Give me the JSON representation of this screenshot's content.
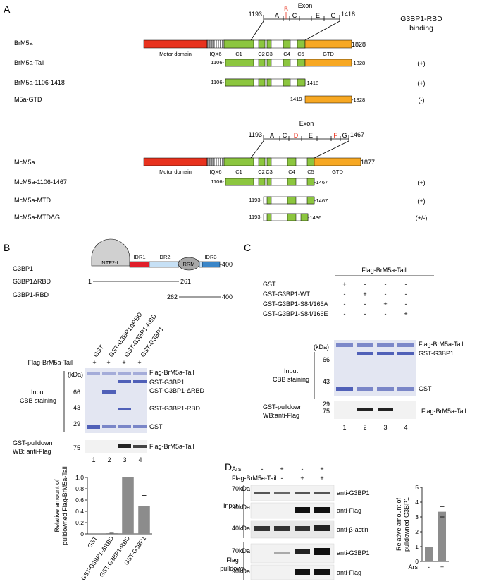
{
  "panelA": {
    "letter": "A",
    "header": "G3BP1-RBD",
    "header2": "binding",
    "br": {
      "exon_label": "Exon",
      "exon_letters": [
        "A",
        "B",
        "C",
        "E",
        "G"
      ],
      "exon_start": "1193",
      "exon_end": "1418",
      "full_name": "BrM5a",
      "domain_motor": "Motor domain",
      "domain_iq": "IQX6",
      "domain_gtd": "GTD",
      "coil_labels": [
        "C1",
        "C2",
        "C3",
        "C4",
        "C5"
      ],
      "full_end": "1828",
      "constructs": [
        {
          "name": "BrM5a-Tail",
          "start": "1106-",
          "end": "-1828",
          "binding": "(+)"
        },
        {
          "name": "BrM5a-1106-1418",
          "start": "1106-",
          "end": "-1418",
          "binding": "(+)"
        },
        {
          "name": "M5a-GTD",
          "start": "1419-",
          "end": "-1828",
          "binding": "(-)"
        }
      ]
    },
    "mc": {
      "exon_label": "Exon",
      "exon_letters": [
        "A",
        "C",
        "D",
        "E",
        "F",
        "G"
      ],
      "exon_start": "1193",
      "exon_end": "1467",
      "full_name": "McM5a",
      "domain_motor": "Motor domain",
      "domain_iq": "IQX6",
      "domain_gtd": "GTD",
      "coil_labels": [
        "C1",
        "C2",
        "C3",
        "C4",
        "C5"
      ],
      "full_end": "1877",
      "constructs": [
        {
          "name": "McM5a-1106-1467",
          "start": "1106-",
          "end": "-1467",
          "binding": "(+)"
        },
        {
          "name": "McM5a-MTD",
          "start": "1193-",
          "end": "-1467",
          "binding": "(+)"
        },
        {
          "name": "McM5a-MTDΔG",
          "start": "1193-",
          "end": "-1436",
          "binding": "(+/-)"
        }
      ]
    }
  },
  "panelB": {
    "letter": "B",
    "protein": "G3BP1",
    "domains": [
      "NTF2-L",
      "IDR1",
      "IDR2",
      "RRM",
      "IDR3"
    ],
    "end": "-400",
    "constructs": [
      {
        "name": "G3BP1ΔRBD",
        "start": "1",
        "end": "261"
      },
      {
        "name": "G3BP1-RBD",
        "start": "262",
        "end": "400"
      }
    ],
    "lane_labels": [
      "GST",
      "GST-G3BP1ΔRBD",
      "GST-G3BP1-RBD",
      "GST-G3BP1"
    ],
    "flag_row": "Flag-BrM5a-Tail",
    "plus_signs": [
      "+",
      "+",
      "+",
      "+"
    ],
    "kda": "(kDa)",
    "markers": [
      "66",
      "43",
      "29"
    ],
    "input_label": "Input",
    "cbb_label": "CBB staining",
    "right_labels": [
      "Flag-BrM5a-Tail",
      "GST-G3BP1",
      "GST-G3BP1-ΔRBD",
      "GST-G3BP1-RBD",
      "GST"
    ],
    "pulldown_label": "GST-pulldown",
    "wb_label": "WB: anti-Flag",
    "wb_marker": "75",
    "wb_right": "Flag-BrM5a-Tail",
    "lane_numbers": [
      "1",
      "2",
      "3",
      "4"
    ]
  },
  "chartB": {
    "ylabel_1": "Relative amount of",
    "ylabel_2": "pulldowned Flag-BrM5a-Tail",
    "categories": [
      "GST",
      "GST-G3BP1-ΔRBD",
      "GST-G3BP1-RBD",
      "GST-G3BP1"
    ],
    "values": [
      0.0,
      0.02,
      1.0,
      0.5
    ],
    "errors": [
      0,
      0.005,
      0,
      0.18
    ],
    "ylim": [
      0,
      1.0
    ],
    "yticks": [
      "0",
      "0.2",
      "0.4",
      "0.6",
      "0.8",
      "1.0"
    ],
    "color": "#8c8c8c"
  },
  "panelC": {
    "letter": "C",
    "header": "Flag-BrM5a-Tail",
    "rows": [
      {
        "label": "GST",
        "signs": [
          "+",
          "-",
          "-",
          "-"
        ]
      },
      {
        "label": "GST-G3BP1-WT",
        "signs": [
          "-",
          "+",
          "-",
          "-"
        ]
      },
      {
        "label": "GST-G3BP1-S84/166A",
        "signs": [
          "-",
          "-",
          "+",
          "-"
        ]
      },
      {
        "label": "GST-G3BP1-S84/166E",
        "signs": [
          "-",
          "-",
          "-",
          "+"
        ]
      }
    ],
    "kda": "(kDa)",
    "markers": [
      "66",
      "43",
      "29"
    ],
    "input_label": "Input",
    "cbb_label": "CBB staining",
    "right_labels": [
      "Flag-BrM5a-Tail",
      "GST-G3BP1",
      "GST"
    ],
    "pulldown_label": "GST-pulldown",
    "wb_label": "WB:anti-Flag",
    "wb_marker": "75",
    "wb_right": "Flag-BrM5a-Tail",
    "lane_numbers": [
      "1",
      "2",
      "3",
      "4"
    ]
  },
  "panelD": {
    "letter": "D",
    "rows": [
      {
        "label": "Ars",
        "signs": [
          "-",
          "+",
          "-",
          "+"
        ]
      },
      {
        "label": "Flag-BrM5a-Tail",
        "signs": [
          "-",
          "-",
          "+",
          "+"
        ]
      }
    ],
    "input_label": "Input",
    "pulldown_1": "Flag",
    "pulldown_2": "pulldown",
    "blots": [
      {
        "kda": "70kDa",
        "label": "anti-G3BP1"
      },
      {
        "kda": "90kDa",
        "label": "anti-Flag"
      },
      {
        "kda": "40kDa",
        "label": "anti-β-actin"
      },
      {
        "kda": "70kDa",
        "label": "anti-G3BP1"
      },
      {
        "kda": "90kDa",
        "label": "anti-Flag"
      }
    ]
  },
  "chartD": {
    "ylabel_1": "Relative amount of",
    "ylabel_2": "pulldowned G3BP1",
    "categories": [
      "-",
      "+"
    ],
    "x_title": "Ars",
    "values": [
      1.0,
      3.35
    ],
    "errors": [
      0,
      0.35
    ],
    "ylim": [
      0,
      5
    ],
    "yticks": [
      "0",
      "1",
      "2",
      "3",
      "4",
      "5"
    ],
    "color": "#8c8c8c"
  },
  "colors": {
    "motor": "#e8321e",
    "iq": "#8a8a8a",
    "coil": "#8cc63f",
    "gtd": "#f7a823",
    "ntf2": "#d0d0d0",
    "idr1": "#e01e2a",
    "idr2": "#c6e0f5",
    "rrm": "#a8a8a8",
    "idr3": "#3a86c8",
    "exon_red": "#e8321e",
    "gel_bg": "#e3e6f2",
    "gel_band": "#5060b8"
  }
}
